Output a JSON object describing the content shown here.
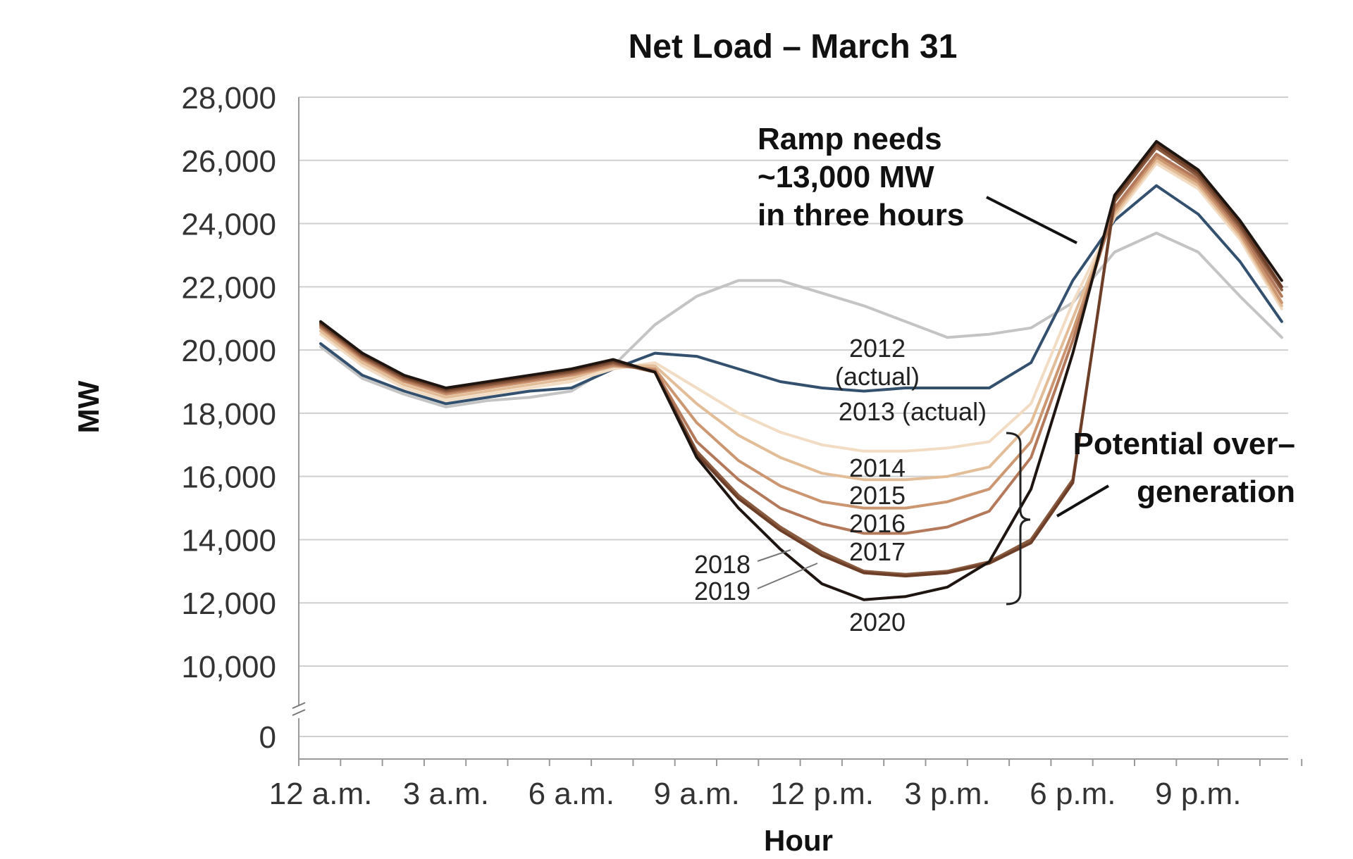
{
  "chart_data": {
    "type": "line",
    "title": "Net Load – March 31",
    "xlabel": "Hour",
    "ylabel": "MW",
    "x": [
      0,
      1,
      2,
      3,
      4,
      5,
      6,
      7,
      8,
      9,
      10,
      11,
      12,
      13,
      14,
      15,
      16,
      17,
      18,
      19,
      20,
      21,
      22,
      23
    ],
    "xticks": [
      {
        "x": 0,
        "label": "12 a.m."
      },
      {
        "x": 3,
        "label": "3 a.m."
      },
      {
        "x": 6,
        "label": "6 a.m."
      },
      {
        "x": 9,
        "label": "9 a.m."
      },
      {
        "x": 12,
        "label": "12 p.m."
      },
      {
        "x": 15,
        "label": "3 p.m."
      },
      {
        "x": 18,
        "label": "6 p.m."
      },
      {
        "x": 21,
        "label": "9 p.m."
      }
    ],
    "yticks": [
      {
        "y": 28000,
        "label": "28,000"
      },
      {
        "y": 26000,
        "label": "26,000"
      },
      {
        "y": 24000,
        "label": "24,000"
      },
      {
        "y": 22000,
        "label": "22,000"
      },
      {
        "y": 20000,
        "label": "20,000"
      },
      {
        "y": 18000,
        "label": "18,000"
      },
      {
        "y": 16000,
        "label": "16,000"
      },
      {
        "y": 14000,
        "label": "14,000"
      },
      {
        "y": 12000,
        "label": "12,000"
      },
      {
        "y": 10000,
        "label": "10,000"
      },
      {
        "y": 0,
        "label": "0"
      }
    ],
    "ylim": [
      0,
      28000
    ],
    "y_axis_break": true,
    "grid": true,
    "series": [
      {
        "name": "2012 (actual)",
        "color": "#c4c4c4",
        "values": [
          20100,
          19100,
          18600,
          18200,
          18400,
          18500,
          18700,
          19500,
          20800,
          21700,
          22200,
          22200,
          21800,
          21400,
          20900,
          20400,
          20500,
          20700,
          21500,
          23100,
          23700,
          23100,
          21700,
          20400
        ]
      },
      {
        "name": "2013 (actual)",
        "color": "#33506f",
        "values": [
          20200,
          19200,
          18700,
          18300,
          18500,
          18700,
          18800,
          19400,
          19900,
          19800,
          19400,
          19000,
          18800,
          18700,
          18800,
          18800,
          18800,
          19600,
          22200,
          24100,
          25200,
          24300,
          22800,
          20900
        ]
      },
      {
        "name": "2014",
        "color": "#f2dcc4",
        "values": [
          20500,
          19500,
          18800,
          18400,
          18600,
          18800,
          19000,
          19400,
          19600,
          18800,
          18000,
          17400,
          17000,
          16800,
          16800,
          16900,
          17100,
          18300,
          21500,
          24200,
          25900,
          25100,
          23500,
          21300
        ]
      },
      {
        "name": "2015",
        "color": "#e3bd98",
        "values": [
          20600,
          19600,
          18900,
          18500,
          18700,
          18900,
          19100,
          19500,
          19500,
          18300,
          17300,
          16600,
          16100,
          15900,
          15900,
          16000,
          16300,
          17700,
          21000,
          24300,
          26000,
          25200,
          23600,
          21400
        ]
      },
      {
        "name": "2016",
        "color": "#cc9670",
        "values": [
          20700,
          19700,
          19000,
          18600,
          18800,
          19000,
          19200,
          19500,
          19400,
          17700,
          16500,
          15700,
          15200,
          15000,
          15000,
          15200,
          15600,
          17100,
          20600,
          24400,
          26100,
          25300,
          23700,
          21500
        ]
      },
      {
        "name": "2017",
        "color": "#b4785a",
        "values": [
          20750,
          19750,
          19050,
          18650,
          18850,
          19050,
          19250,
          19550,
          19350,
          17100,
          15900,
          15000,
          14500,
          14200,
          14200,
          14400,
          14900,
          16600,
          20300,
          24500,
          26200,
          25400,
          23800,
          21700
        ]
      },
      {
        "name": "2018",
        "color": "#8a5a3f",
        "values": [
          20800,
          19800,
          19100,
          18700,
          18900,
          19100,
          19300,
          19600,
          19300,
          16800,
          15400,
          14400,
          13600,
          13000,
          12900,
          13000,
          13300,
          14000,
          15900,
          24700,
          26400,
          25500,
          23900,
          21900
        ]
      },
      {
        "name": "2019",
        "color": "#6e3f28",
        "values": [
          20850,
          19850,
          19150,
          18750,
          18950,
          19150,
          19350,
          19650,
          19300,
          16700,
          15300,
          14300,
          13500,
          12950,
          12850,
          12950,
          13250,
          13900,
          15800,
          24800,
          26500,
          25600,
          24000,
          22000
        ]
      },
      {
        "name": "2020",
        "color": "#1e1410",
        "values": [
          20900,
          19900,
          19200,
          18800,
          19000,
          19200,
          19400,
          19700,
          19300,
          16600,
          15000,
          13700,
          12600,
          12100,
          12200,
          12500,
          13300,
          15600,
          19900,
          24900,
          26600,
          25700,
          24100,
          22200
        ]
      }
    ],
    "series_labels": [
      {
        "series": "2012 (actual)",
        "lines": [
          "2012",
          "(actual)"
        ]
      },
      {
        "series": "2013 (actual)",
        "lines": [
          "2013 (actual)"
        ]
      },
      {
        "series": "2014",
        "lines": [
          "2014"
        ]
      },
      {
        "series": "2015",
        "lines": [
          "2015"
        ]
      },
      {
        "series": "2016",
        "lines": [
          "2016"
        ]
      },
      {
        "series": "2017",
        "lines": [
          "2017"
        ]
      },
      {
        "series": "2018",
        "lines": [
          "2018"
        ]
      },
      {
        "series": "2019",
        "lines": [
          "2019"
        ]
      },
      {
        "series": "2020",
        "lines": [
          "2020"
        ]
      }
    ],
    "annotations": [
      {
        "name": "ramp-needs",
        "lines": [
          "Ramp needs",
          "~13,000 MW",
          "in three hours"
        ]
      },
      {
        "name": "potential-overgeneration",
        "lines": [
          "Potential over–",
          "generation"
        ]
      }
    ]
  }
}
